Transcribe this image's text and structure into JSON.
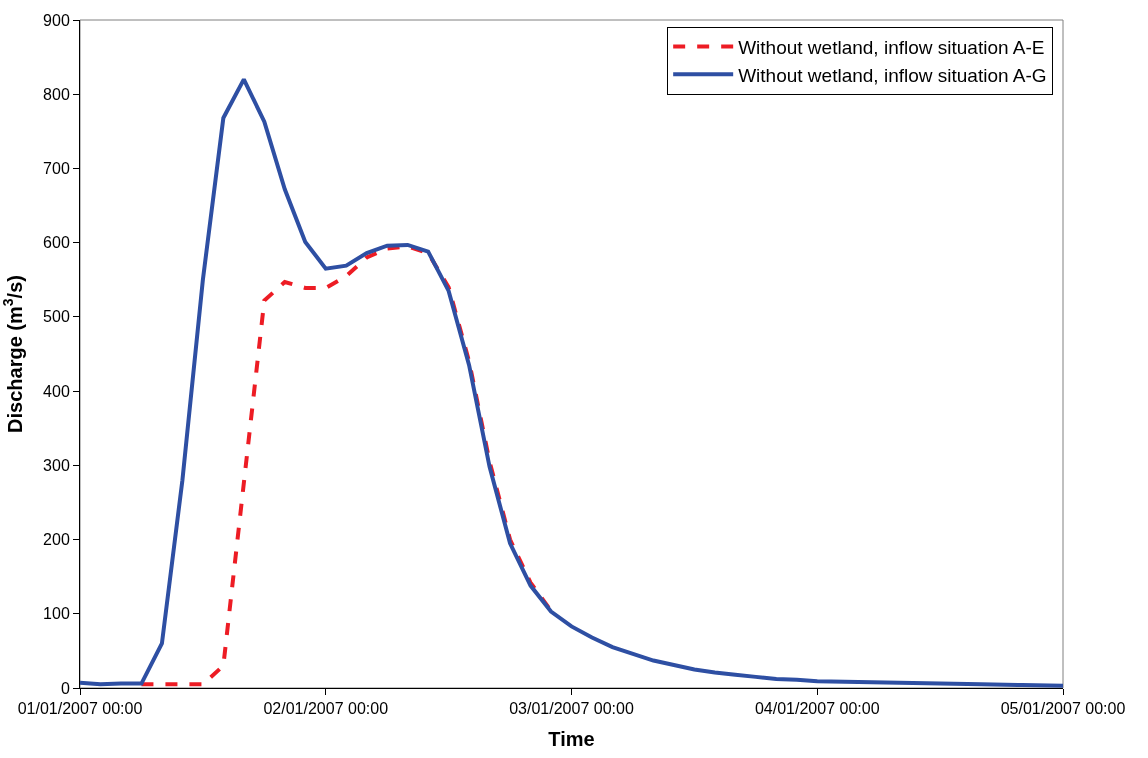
{
  "chart_data": {
    "type": "line",
    "xlabel": "Time",
    "ylabel": "Discharge (m$^{3}$/s)",
    "x": [
      "2007-01-01T00:00",
      "2007-01-01T02:00",
      "2007-01-01T04:00",
      "2007-01-01T06:00",
      "2007-01-01T08:00",
      "2007-01-01T10:00",
      "2007-01-01T12:00",
      "2007-01-01T14:00",
      "2007-01-01T16:00",
      "2007-01-01T18:00",
      "2007-01-01T20:00",
      "2007-01-01T22:00",
      "2007-01-02T00:00",
      "2007-01-02T02:00",
      "2007-01-02T04:00",
      "2007-01-02T06:00",
      "2007-01-02T08:00",
      "2007-01-02T10:00",
      "2007-01-02T12:00",
      "2007-01-02T14:00",
      "2007-01-02T16:00",
      "2007-01-02T18:00",
      "2007-01-02T20:00",
      "2007-01-02T22:00",
      "2007-01-03T00:00",
      "2007-01-03T02:00",
      "2007-01-03T04:00",
      "2007-01-03T06:00",
      "2007-01-03T08:00",
      "2007-01-03T10:00",
      "2007-01-03T12:00",
      "2007-01-03T14:00",
      "2007-01-03T16:00",
      "2007-01-03T18:00",
      "2007-01-03T20:00",
      "2007-01-03T22:00",
      "2007-01-04T00:00",
      "2007-01-04T04:00",
      "2007-01-04T08:00",
      "2007-01-04T12:00",
      "2007-01-04T16:00",
      "2007-01-04T20:00",
      "2007-01-05T00:00"
    ],
    "series": [
      {
        "name": "Without wetland, inflow situation A-E",
        "color": "#ed1c24",
        "line_style": "dashed",
        "values": [
          null,
          null,
          null,
          5,
          5,
          5,
          5,
          30,
          276,
          522,
          547,
          539,
          539,
          555,
          580,
          592,
          595,
          586,
          540,
          440,
          305,
          200,
          142,
          104,
          null,
          null,
          null,
          null,
          null,
          null,
          null,
          null,
          null,
          null,
          null,
          null,
          null,
          null,
          null,
          null,
          null,
          null,
          null
        ]
      },
      {
        "name": "Without wetland, inflow situation A-G",
        "color": "#2e4fa3",
        "line_style": "solid",
        "values": [
          7,
          5,
          6,
          6,
          60,
          280,
          550,
          768,
          820,
          763,
          672,
          601,
          565,
          569,
          586,
          596,
          597,
          588,
          535,
          435,
          298,
          195,
          138,
          103,
          83,
          68,
          55,
          46,
          37,
          31,
          25,
          21,
          18,
          15,
          12,
          11,
          9,
          8,
          7,
          6,
          5,
          4,
          3
        ]
      }
    ],
    "xlim": [
      "2007-01-01T00:00",
      "2007-01-05T00:00"
    ],
    "xticks": [
      {
        "value": "2007-01-01T00:00",
        "label": "01/01/2007 00:00"
      },
      {
        "value": "2007-01-02T00:00",
        "label": "02/01/2007 00:00"
      },
      {
        "value": "2007-01-03T00:00",
        "label": "03/01/2007 00:00"
      },
      {
        "value": "2007-01-04T00:00",
        "label": "04/01/2007 00:00"
      },
      {
        "value": "2007-01-05T00:00",
        "label": "05/01/2007 00:00"
      }
    ],
    "ylim": [
      0,
      900
    ],
    "yticks": [
      0,
      100,
      200,
      300,
      400,
      500,
      600,
      700,
      800,
      900
    ],
    "grid": false,
    "legend": "top right",
    "marker": "none"
  }
}
